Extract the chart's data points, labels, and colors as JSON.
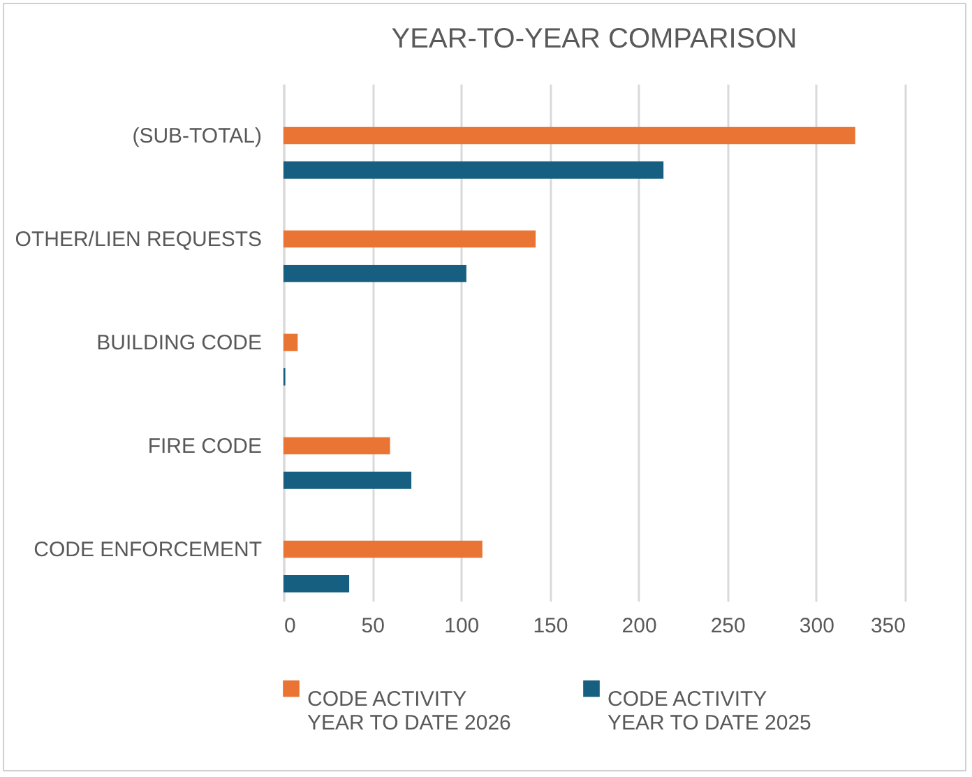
{
  "chart_data": {
    "type": "bar",
    "orientation": "horizontal",
    "title": "YEAR-TO-YEAR COMPARISON",
    "categories": [
      "(SUB-TOTAL)",
      "OTHER/LIEN REQUESTS",
      "BUILDING CODE",
      "FIRE CODE",
      "CODE ENFORCEMENT"
    ],
    "series": [
      {
        "name": "CODE ACTIVITY YEAR TO DATE 2026",
        "color": "#ea7433",
        "values": [
          322,
          142,
          8,
          60,
          112
        ]
      },
      {
        "name": "CODE ACTIVITY YEAR TO DATE 2025",
        "color": "#175f81",
        "values": [
          214,
          103,
          1,
          72,
          37
        ]
      }
    ],
    "xlim": [
      0,
      350
    ],
    "xticks": [
      0,
      50,
      100,
      150,
      200,
      250,
      300,
      350
    ],
    "grid": "x",
    "legend": "bottom"
  }
}
